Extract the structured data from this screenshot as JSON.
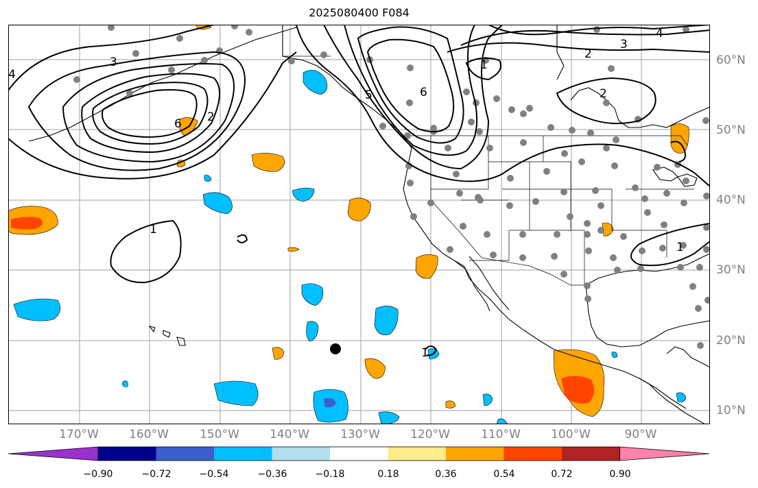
{
  "title": "2025080400 F084",
  "longitude_labels": [
    "170°W",
    "160°W",
    "150°W",
    "140°W",
    "130°W",
    "120°W",
    "110°W",
    "100°W",
    "90°W"
  ],
  "latitude_labels": [
    "60°N",
    "50°N",
    "40°N",
    "30°N",
    "20°N",
    "10°N"
  ],
  "colorbar": {
    "tick_labels": [
      "−0.90",
      "−0.72",
      "−0.54",
      "−0.36",
      "−0.18",
      "0.18",
      "0.36",
      "0.54",
      "0.72",
      "0.90"
    ],
    "colors": [
      "#9932cc",
      "#00008b",
      "#3a5fcd",
      "#00bfff",
      "#b2dfee",
      "#ffffff",
      "#ffec8b",
      "#ffa500",
      "#ff4500",
      "#b22222",
      "#ff82ab"
    ]
  },
  "contour_labels": [
    "4",
    "3",
    "6",
    "2",
    "1",
    "5",
    "6",
    "1",
    "2",
    "3",
    "4",
    "2",
    "1",
    "1"
  ],
  "colors": {
    "positive_fill": "#ffa500",
    "strong_positive_fill": "#ff4500",
    "negative_fill": "#00bfff",
    "strong_negative_fill": "#3a5fcd",
    "station_dot": "#808080",
    "gridline": "#a0a0a0"
  }
}
